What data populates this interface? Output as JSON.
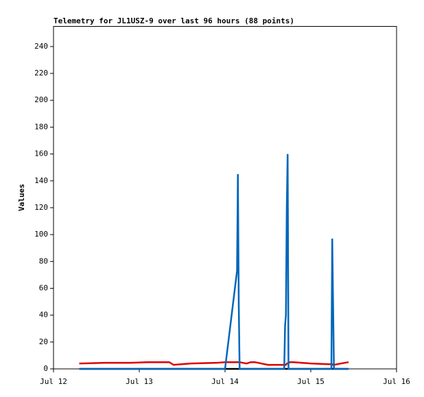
{
  "chart_data": {
    "type": "line",
    "title": "Telemetry for JL1USZ-9 over last 96 hours (88 points)",
    "y_label": "Values",
    "x": [
      12.3,
      12.6,
      12.9,
      13.1,
      13.35,
      13.4,
      13.6,
      13.9,
      14.0,
      14.14,
      14.15,
      14.16,
      14.17,
      14.25,
      14.3,
      14.35,
      14.5,
      14.69,
      14.7,
      14.71,
      14.72,
      14.73,
      14.74,
      14.75,
      14.8,
      15.0,
      15.2,
      15.24,
      15.25,
      15.26,
      15.27,
      15.35,
      15.44
    ],
    "series": [
      {
        "color": "#000000",
        "values": [
          0,
          0,
          0,
          0,
          0,
          0,
          0,
          0,
          0,
          0,
          0,
          0,
          0,
          0,
          0,
          0,
          0,
          0,
          0,
          0,
          0,
          0,
          0,
          0,
          0,
          0,
          0,
          0,
          0,
          0,
          0,
          0,
          0
        ]
      },
      {
        "color": "#dd0000",
        "values": [
          4,
          4.5,
          4.5,
          5,
          5,
          3,
          4,
          4.5,
          5,
          5,
          5,
          5,
          5,
          4,
          5,
          5,
          3,
          3,
          3,
          3,
          4,
          4,
          4,
          5,
          5,
          4,
          3.5,
          3.5,
          3.5,
          3,
          3,
          4,
          5
        ]
      },
      {
        "color": "#0066bb",
        "values": [
          0,
          0,
          0,
          0,
          0,
          0,
          0,
          0,
          0,
          73,
          145,
          48,
          0,
          0,
          0,
          0,
          0,
          0,
          32,
          40,
          120,
          160,
          0,
          0,
          0,
          0,
          0,
          0,
          97,
          48,
          0,
          0,
          0
        ]
      }
    ],
    "xlim": [
      12,
      16
    ],
    "xticks": [
      {
        "value": 12,
        "label": "Jul 12"
      },
      {
        "value": 13,
        "label": "Jul 13"
      },
      {
        "value": 14,
        "label": "Jul 14"
      },
      {
        "value": 15,
        "label": "Jul 15"
      },
      {
        "value": 16,
        "label": "Jul 16"
      }
    ],
    "ylim": [
      0,
      255
    ],
    "yticks": [
      0,
      20,
      40,
      60,
      80,
      100,
      120,
      140,
      160,
      180,
      200,
      220,
      240
    ],
    "grid": false
  }
}
